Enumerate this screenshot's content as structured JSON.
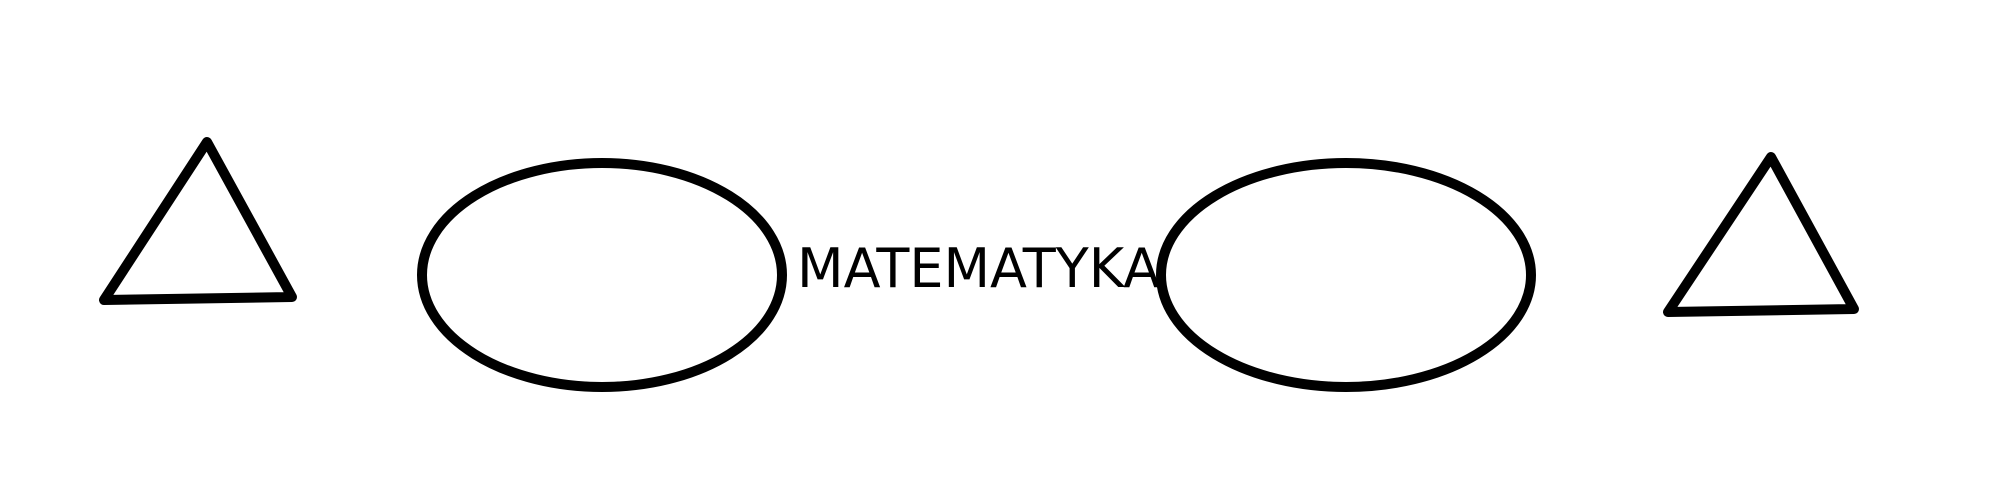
{
  "center_text": "MATEMATYKA",
  "shapes": [
    {
      "kind": "triangle",
      "icon": "triangle-icon"
    },
    {
      "kind": "ellipse",
      "icon": "ellipse-icon"
    },
    {
      "kind": "ellipse",
      "icon": "ellipse-icon"
    },
    {
      "kind": "triangle",
      "icon": "triangle-icon"
    }
  ],
  "colors": {
    "stroke": "#000000",
    "background": "#ffffff",
    "text": "#000000"
  }
}
